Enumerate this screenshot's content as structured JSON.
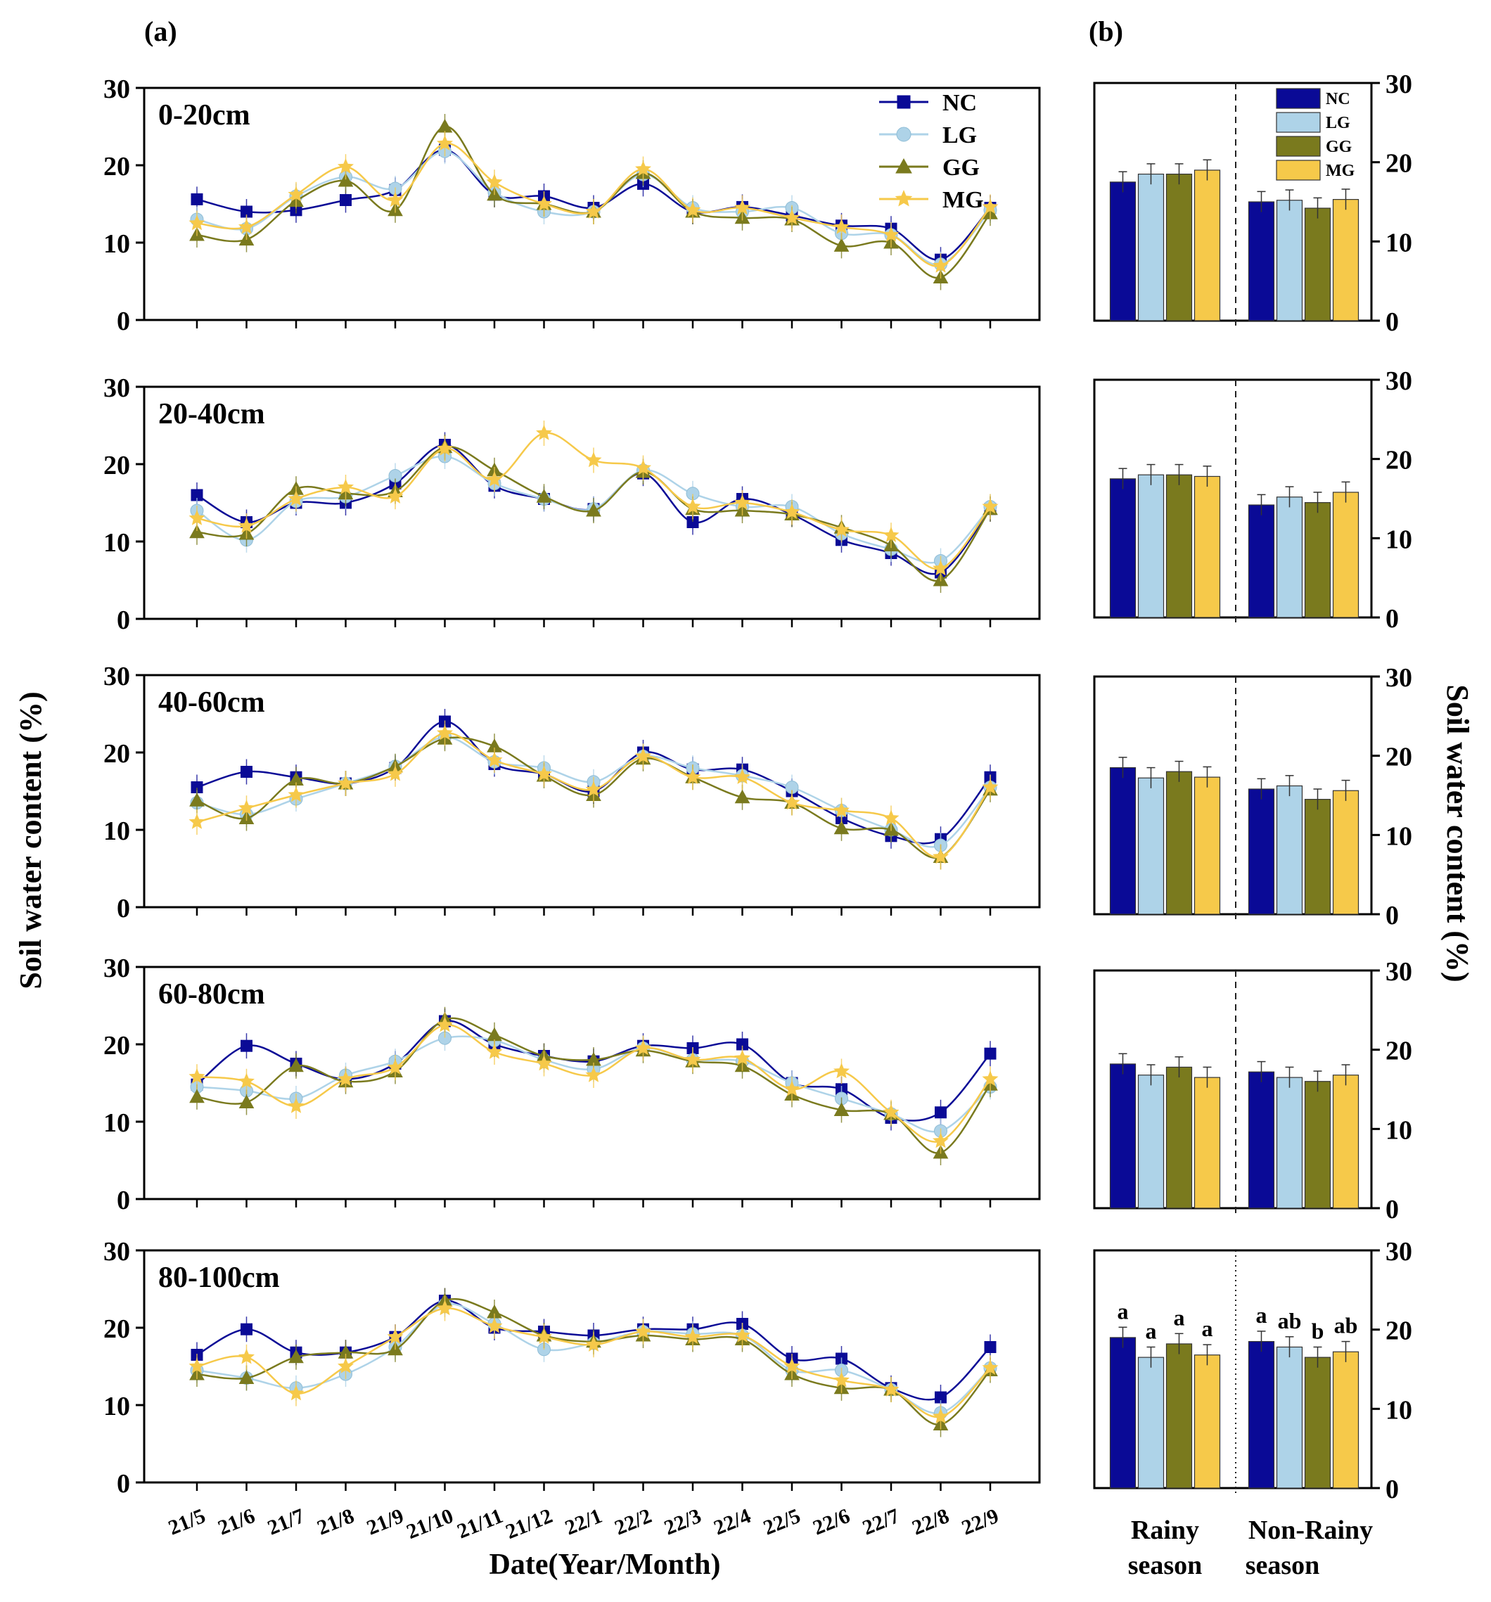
{
  "figure": {
    "panel_a_label": "(a)",
    "panel_b_label": "(b)",
    "y_axis_label": "Soil water content (%)",
    "y_axis_label_right": "Soil water content (%)",
    "x_axis_label": "Date(Year/Month)"
  },
  "series_styles": [
    {
      "name": "NC",
      "color": "#0a0a96",
      "marker": "square"
    },
    {
      "name": "LG",
      "color": "#aed3e8",
      "marker": "circle"
    },
    {
      "name": "GG",
      "color": "#7a7a1e",
      "marker": "triangle"
    },
    {
      "name": "MG",
      "color": "#f6c94a",
      "marker": "star"
    }
  ],
  "chart_data": [
    {
      "type": "line",
      "panel": "a",
      "depth": "0-20cm",
      "categories": [
        "21/5",
        "21/6",
        "21/7",
        "21/8",
        "21/9",
        "21/10",
        "21/11",
        "21/12",
        "22/1",
        "22/2",
        "22/3",
        "22/4",
        "22/5",
        "22/6",
        "22/7",
        "22/8",
        "22/9"
      ],
      "ylim": [
        0,
        30
      ],
      "yticks": [
        0,
        10,
        20,
        30
      ],
      "legend": "top-right",
      "series": [
        {
          "name": "NC",
          "values": [
            15.6,
            14.0,
            14.2,
            15.5,
            16.8,
            22.0,
            16.2,
            16.0,
            14.5,
            17.6,
            14.0,
            14.6,
            13.5,
            12.2,
            11.8,
            7.8,
            14.5
          ]
        },
        {
          "name": "LG",
          "values": [
            13.0,
            11.8,
            16.0,
            18.5,
            17.0,
            21.8,
            16.5,
            14.0,
            14.0,
            18.8,
            14.5,
            14.0,
            14.5,
            11.2,
            11.0,
            7.2,
            14.2
          ]
        },
        {
          "name": "GG",
          "values": [
            11.0,
            10.4,
            15.4,
            18.0,
            14.2,
            25.0,
            16.2,
            15.0,
            14.0,
            19.0,
            14.0,
            13.2,
            13.0,
            9.6,
            10.0,
            5.5,
            13.8
          ]
        },
        {
          "name": "MG",
          "values": [
            12.5,
            12.0,
            16.2,
            19.8,
            15.5,
            22.8,
            17.8,
            15.0,
            14.0,
            19.5,
            14.2,
            14.5,
            13.2,
            12.0,
            11.0,
            7.0,
            14.6
          ]
        }
      ]
    },
    {
      "type": "line",
      "panel": "a",
      "depth": "20-40cm",
      "categories": [
        "21/5",
        "21/6",
        "21/7",
        "21/8",
        "21/9",
        "21/10",
        "21/11",
        "21/12",
        "22/1",
        "22/2",
        "22/3",
        "22/4",
        "22/5",
        "22/6",
        "22/7",
        "22/8",
        "22/9"
      ],
      "ylim": [
        0,
        30
      ],
      "yticks": [
        0,
        10,
        20,
        30
      ],
      "series": [
        {
          "name": "NC",
          "values": [
            16.0,
            12.5,
            15.0,
            15.0,
            17.5,
            22.5,
            17.2,
            15.5,
            14.2,
            18.8,
            12.5,
            15.5,
            13.5,
            10.2,
            8.5,
            6.0,
            14.2
          ]
        },
        {
          "name": "LG",
          "values": [
            14.0,
            10.2,
            15.2,
            15.8,
            18.5,
            21.0,
            17.5,
            15.5,
            14.2,
            19.2,
            16.2,
            14.5,
            14.5,
            11.0,
            9.0,
            7.5,
            14.5
          ]
        },
        {
          "name": "GG",
          "values": [
            11.2,
            11.0,
            16.8,
            16.2,
            16.5,
            22.2,
            19.2,
            15.8,
            14.0,
            19.0,
            14.2,
            14.0,
            13.5,
            11.8,
            9.5,
            5.0,
            14.2
          ]
        },
        {
          "name": "MG",
          "values": [
            13.0,
            12.0,
            15.5,
            17.0,
            15.8,
            22.0,
            18.0,
            24.0,
            20.5,
            19.5,
            14.5,
            15.0,
            13.8,
            11.5,
            10.8,
            6.5,
            14.5
          ]
        }
      ]
    },
    {
      "type": "line",
      "panel": "a",
      "depth": "40-60cm",
      "categories": [
        "21/5",
        "21/6",
        "21/7",
        "21/8",
        "21/9",
        "21/10",
        "21/11",
        "21/12",
        "22/1",
        "22/2",
        "22/3",
        "22/4",
        "22/5",
        "22/6",
        "22/7",
        "22/8",
        "22/9"
      ],
      "ylim": [
        0,
        30
      ],
      "yticks": [
        0,
        10,
        20,
        30
      ],
      "series": [
        {
          "name": "NC",
          "values": [
            15.5,
            17.5,
            16.8,
            16.0,
            18.0,
            24.0,
            18.5,
            17.2,
            15.0,
            20.0,
            17.8,
            17.8,
            15.0,
            11.5,
            9.2,
            8.8,
            16.8
          ]
        },
        {
          "name": "LG",
          "values": [
            13.5,
            12.0,
            14.0,
            16.0,
            18.2,
            22.0,
            18.8,
            18.0,
            16.2,
            19.5,
            18.0,
            17.0,
            15.5,
            12.5,
            10.0,
            8.0,
            15.5
          ]
        },
        {
          "name": "GG",
          "values": [
            13.8,
            11.5,
            16.5,
            16.0,
            18.2,
            21.8,
            20.8,
            17.0,
            14.5,
            19.2,
            16.8,
            14.2,
            13.5,
            10.2,
            10.0,
            6.5,
            15.2
          ]
        },
        {
          "name": "MG",
          "values": [
            11.0,
            12.8,
            14.5,
            16.0,
            17.2,
            22.5,
            19.0,
            17.2,
            15.2,
            19.5,
            16.8,
            16.8,
            13.5,
            12.5,
            11.5,
            6.5,
            15.5
          ]
        }
      ]
    },
    {
      "type": "line",
      "panel": "a",
      "depth": "60-80cm",
      "categories": [
        "21/5",
        "21/6",
        "21/7",
        "21/8",
        "21/9",
        "21/10",
        "21/11",
        "21/12",
        "22/1",
        "22/2",
        "22/3",
        "22/4",
        "22/5",
        "22/6",
        "22/7",
        "22/8",
        "22/9"
      ],
      "ylim": [
        0,
        30
      ],
      "yticks": [
        0,
        10,
        20,
        30
      ],
      "series": [
        {
          "name": "NC",
          "values": [
            14.8,
            19.8,
            17.5,
            15.5,
            17.5,
            23.0,
            20.0,
            18.5,
            17.8,
            19.8,
            19.5,
            20.0,
            15.0,
            14.2,
            10.5,
            11.2,
            18.8
          ]
        },
        {
          "name": "LG",
          "values": [
            14.5,
            14.0,
            13.0,
            16.0,
            17.8,
            20.8,
            20.5,
            18.0,
            16.8,
            19.5,
            18.0,
            17.8,
            15.0,
            13.0,
            11.0,
            8.8,
            14.5
          ]
        },
        {
          "name": "GG",
          "values": [
            13.2,
            12.5,
            17.2,
            15.2,
            16.5,
            23.2,
            21.2,
            18.5,
            18.0,
            19.2,
            17.8,
            17.2,
            13.5,
            11.5,
            11.0,
            6.0,
            14.8
          ]
        },
        {
          "name": "MG",
          "values": [
            15.8,
            15.2,
            12.0,
            15.5,
            17.0,
            22.5,
            19.0,
            17.5,
            16.0,
            19.5,
            18.0,
            18.2,
            14.2,
            16.5,
            11.2,
            7.5,
            15.5
          ]
        }
      ]
    },
    {
      "type": "line",
      "panel": "a",
      "depth": "80-100cm",
      "categories": [
        "21/5",
        "21/6",
        "21/7",
        "21/8",
        "21/9",
        "21/10",
        "21/11",
        "21/12",
        "22/1",
        "22/2",
        "22/3",
        "22/4",
        "22/5",
        "22/6",
        "22/7",
        "22/8",
        "22/9"
      ],
      "ylim": [
        0,
        30
      ],
      "yticks": [
        0,
        10,
        20,
        30
      ],
      "series": [
        {
          "name": "NC",
          "values": [
            16.5,
            19.8,
            16.8,
            16.8,
            18.8,
            23.5,
            20.0,
            19.5,
            19.0,
            19.8,
            19.8,
            20.5,
            16.0,
            16.0,
            12.2,
            11.0,
            17.5
          ]
        },
        {
          "name": "LG",
          "values": [
            14.5,
            13.5,
            12.2,
            14.0,
            17.5,
            23.0,
            20.5,
            17.2,
            18.0,
            19.5,
            19.2,
            19.0,
            14.5,
            14.5,
            12.0,
            9.0,
            14.8
          ]
        },
        {
          "name": "GG",
          "values": [
            14.0,
            13.5,
            16.2,
            16.8,
            17.2,
            23.5,
            22.0,
            19.0,
            18.2,
            19.0,
            18.5,
            18.5,
            14.0,
            12.2,
            12.0,
            7.5,
            14.5
          ]
        },
        {
          "name": "MG",
          "values": [
            15.0,
            16.2,
            11.5,
            15.0,
            18.8,
            22.5,
            20.2,
            18.8,
            17.8,
            19.5,
            18.8,
            19.0,
            15.0,
            13.2,
            12.0,
            8.5,
            14.8
          ]
        }
      ]
    },
    {
      "type": "bar",
      "panel": "b",
      "depth": "0-20cm",
      "categories": [
        "Rainy season",
        "Non-Rainy season"
      ],
      "ylim": [
        0,
        30
      ],
      "yticks": [
        0,
        10,
        20,
        30
      ],
      "legend": "top-right",
      "series": [
        {
          "name": "NC",
          "values": [
            17.5,
            15.0
          ]
        },
        {
          "name": "LG",
          "values": [
            18.5,
            15.2
          ]
        },
        {
          "name": "GG",
          "values": [
            18.5,
            14.2
          ]
        },
        {
          "name": "MG",
          "values": [
            19.0,
            15.3
          ]
        }
      ]
    },
    {
      "type": "bar",
      "panel": "b",
      "depth": "20-40cm",
      "categories": [
        "Rainy season",
        "Non-Rainy season"
      ],
      "ylim": [
        0,
        30
      ],
      "yticks": [
        0,
        10,
        20,
        30
      ],
      "series": [
        {
          "name": "NC",
          "values": [
            17.5,
            14.2
          ]
        },
        {
          "name": "LG",
          "values": [
            18.0,
            15.2
          ]
        },
        {
          "name": "GG",
          "values": [
            18.0,
            14.5
          ]
        },
        {
          "name": "MG",
          "values": [
            17.8,
            15.8
          ]
        }
      ]
    },
    {
      "type": "bar",
      "panel": "b",
      "depth": "40-60cm",
      "categories": [
        "Rainy season",
        "Non-Rainy season"
      ],
      "ylim": [
        0,
        30
      ],
      "yticks": [
        0,
        10,
        20,
        30
      ],
      "series": [
        {
          "name": "NC",
          "values": [
            18.5,
            15.8
          ]
        },
        {
          "name": "LG",
          "values": [
            17.2,
            16.2
          ]
        },
        {
          "name": "GG",
          "values": [
            18.0,
            14.5
          ]
        },
        {
          "name": "MG",
          "values": [
            17.3,
            15.6
          ]
        }
      ]
    },
    {
      "type": "bar",
      "panel": "b",
      "depth": "60-80cm",
      "categories": [
        "Rainy season",
        "Non-Rainy season"
      ],
      "ylim": [
        0,
        30
      ],
      "yticks": [
        0,
        10,
        20,
        30
      ],
      "series": [
        {
          "name": "NC",
          "values": [
            18.2,
            17.2
          ]
        },
        {
          "name": "LG",
          "values": [
            16.8,
            16.5
          ]
        },
        {
          "name": "GG",
          "values": [
            17.8,
            16.0
          ]
        },
        {
          "name": "MG",
          "values": [
            16.5,
            16.8
          ]
        }
      ]
    },
    {
      "type": "bar",
      "panel": "b",
      "depth": "80-100cm",
      "categories": [
        "Rainy season",
        "Non-Rainy season"
      ],
      "ylim": [
        0,
        30
      ],
      "yticks": [
        0,
        10,
        20,
        30
      ],
      "series": [
        {
          "name": "NC",
          "values": [
            19.0,
            18.5
          ]
        },
        {
          "name": "LG",
          "values": [
            16.5,
            17.8
          ]
        },
        {
          "name": "GG",
          "values": [
            18.2,
            16.5
          ]
        },
        {
          "name": "MG",
          "values": [
            16.8,
            17.2
          ]
        }
      ],
      "significance": [
        [
          "a",
          "a",
          "a",
          "a"
        ],
        [
          "a",
          "ab",
          "b",
          "ab"
        ]
      ]
    }
  ]
}
